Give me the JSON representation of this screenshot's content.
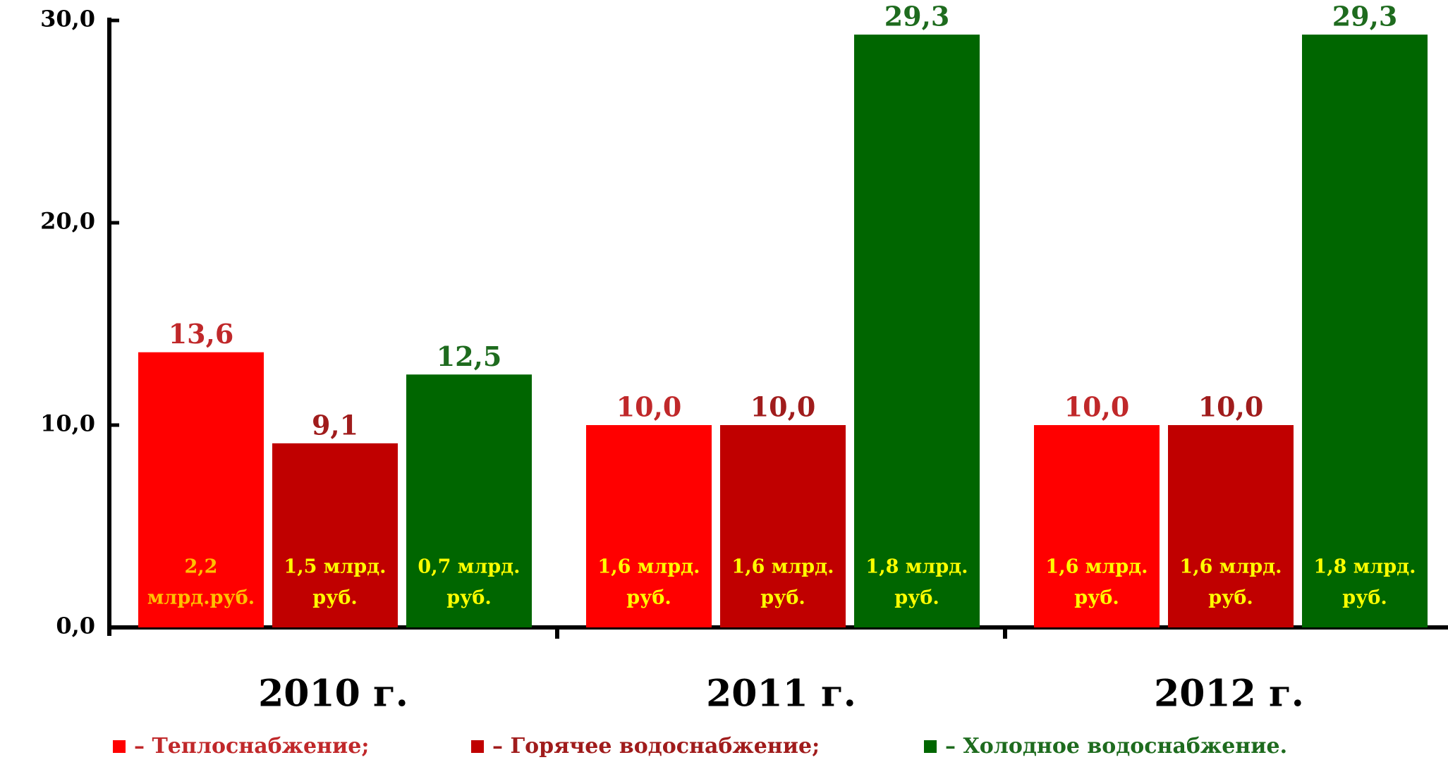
{
  "chart_data": {
    "type": "bar",
    "categories": [
      "2010 г.",
      "2011 г.",
      "2012 г."
    ],
    "series": [
      {
        "name": "– Теплоснабжение;",
        "color": "#ff0000",
        "label_color": "#c0282a",
        "values": [
          13.6,
          10.0,
          10.0
        ],
        "value_labels": [
          "13,6",
          "10,0",
          "10,0"
        ],
        "inner_labels": [
          [
            "2,2",
            "млрд.руб."
          ],
          [
            "1,6 млрд.",
            "руб."
          ],
          [
            "1,6 млрд.",
            "руб."
          ]
        ]
      },
      {
        "name": "– Горячее водоснабжение;",
        "color": "#c00000",
        "label_color": "#a01c1c",
        "values": [
          9.1,
          10.0,
          10.0
        ],
        "value_labels": [
          "9,1",
          "10,0",
          "10,0"
        ],
        "inner_labels": [
          [
            "1,5 млрд.",
            "руб."
          ],
          [
            "1,6 млрд.",
            "руб."
          ],
          [
            "1,6 млрд.",
            "руб."
          ]
        ]
      },
      {
        "name": "– Холодное водоснабжение.",
        "color": "#006600",
        "label_color": "#1e6b1e",
        "values": [
          12.5,
          29.3,
          29.3
        ],
        "value_labels": [
          "12,5",
          "29,3",
          "29,3"
        ],
        "inner_labels": [
          [
            "0,7 млрд.",
            "руб."
          ],
          [
            "1,8 млрд.",
            "руб."
          ],
          [
            "1,8 млрд.",
            "руб."
          ]
        ]
      }
    ],
    "ylim": [
      0,
      30
    ],
    "yticks": [
      {
        "value": 0,
        "label": "0,0"
      },
      {
        "value": 10,
        "label": "10,0"
      },
      {
        "value": 20,
        "label": "20,0"
      },
      {
        "value": 30,
        "label": "30,0"
      }
    ],
    "legend": "bottom"
  }
}
